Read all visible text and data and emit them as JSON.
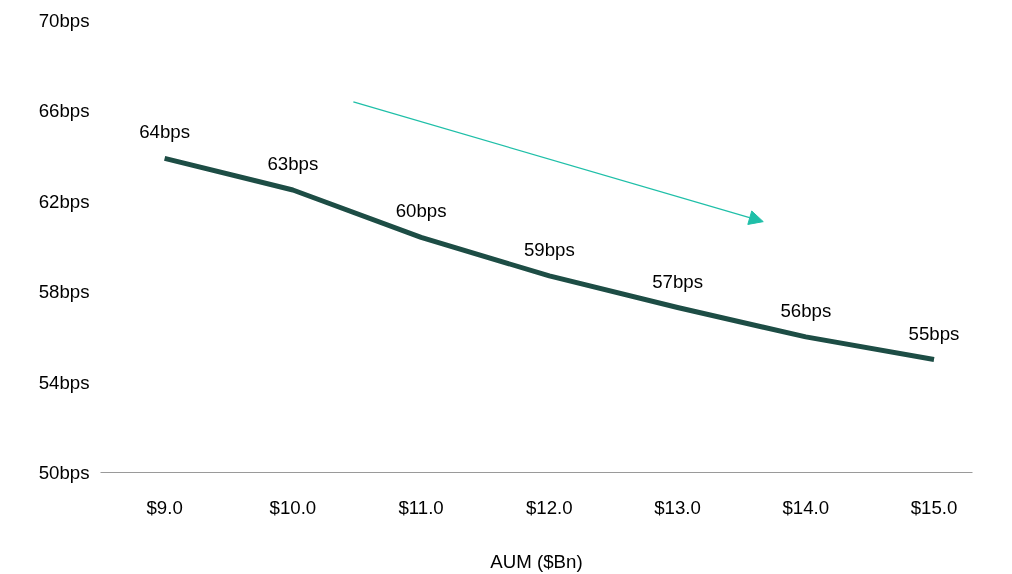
{
  "chart_data": {
    "type": "line",
    "xlabel": "AUM ($Bn)",
    "x": [
      9,
      10,
      11,
      12,
      13,
      14,
      15
    ],
    "series": [
      {
        "color": "#1d4d45",
        "values": [
          63.9,
          62.5,
          60.4,
          58.7,
          57.3,
          56.0,
          55.0
        ],
        "value_labels": [
          "64bps",
          "63bps",
          "60bps",
          "59bps",
          "57bps",
          "56bps",
          "55bps"
        ]
      }
    ],
    "xlim": [
      8.5,
      15.3
    ],
    "xticks": [
      {
        "value": 9,
        "label": "$9.0"
      },
      {
        "value": 10,
        "label": "$10.0"
      },
      {
        "value": 11,
        "label": "$11.0"
      },
      {
        "value": 12,
        "label": "$12.0"
      },
      {
        "value": 13,
        "label": "$13.0"
      },
      {
        "value": 14,
        "label": "$14.0"
      },
      {
        "value": 15,
        "label": "$15.0"
      }
    ],
    "ylim": [
      50,
      70
    ],
    "yticks": [
      {
        "value": 50,
        "label": "50bps"
      },
      {
        "value": 54,
        "label": "54bps"
      },
      {
        "value": 58,
        "label": "58bps"
      },
      {
        "value": 62,
        "label": "62bps"
      },
      {
        "value": 66,
        "label": "66bps"
      },
      {
        "value": 70,
        "label": "70bps"
      }
    ],
    "grid": false,
    "marker": "none",
    "line_style": "solid"
  }
}
